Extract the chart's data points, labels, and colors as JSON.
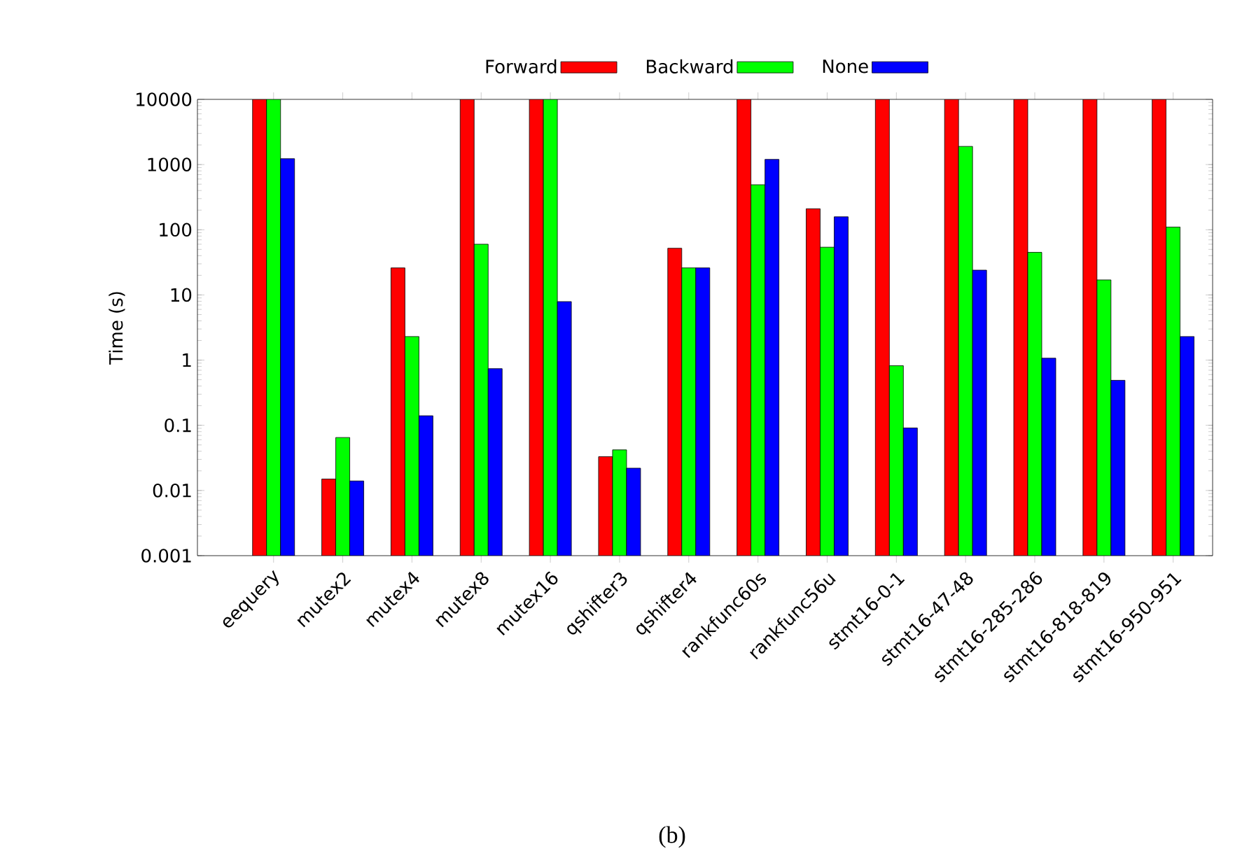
{
  "chart_data": {
    "type": "bar",
    "ylabel": "Time (s)",
    "log": true,
    "ylim": [
      0.001,
      10000
    ],
    "yticks": [
      0.001,
      0.01,
      0.1,
      1,
      10,
      100,
      1000,
      10000
    ],
    "legend": "top",
    "categories": [
      "eequery",
      "mutex2",
      "mutex4",
      "mutex8",
      "mutex16",
      "qshifter3",
      "qshifter4",
      "rankfunc60s",
      "rankfunc56u",
      "stmt16-0-1",
      "stmt16-47-48",
      "stmt16-285-286",
      "stmt16-818-819",
      "stmt16-950-951"
    ],
    "series": [
      {
        "name": "Forward",
        "color": "#ff0000",
        "values": [
          10000,
          0.015,
          26,
          10000,
          10000,
          0.033,
          52,
          10000,
          210,
          10000,
          10000,
          10000,
          10000,
          10000
        ]
      },
      {
        "name": "Backward",
        "color": "#00ff00",
        "values": [
          10000,
          0.065,
          2.3,
          60,
          10000,
          0.042,
          26,
          490,
          54,
          0.82,
          1900,
          45,
          17,
          110
        ]
      },
      {
        "name": "None",
        "color": "#0000ff",
        "values": [
          1230,
          0.014,
          0.14,
          0.74,
          7.9,
          0.022,
          26,
          1200,
          158,
          0.091,
          24,
          1.07,
          0.49,
          2.3
        ]
      }
    ],
    "annotations": [
      "(b)"
    ]
  }
}
